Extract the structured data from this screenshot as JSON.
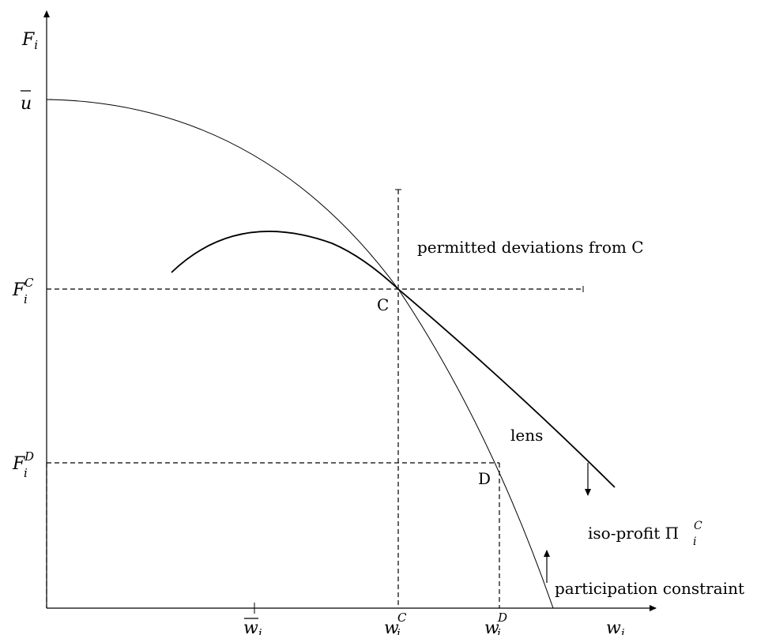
{
  "axes": {
    "y_label": {
      "main": "F",
      "sub": "i"
    },
    "x_label": {
      "main": "w",
      "sub": "i"
    }
  },
  "y_ticks": {
    "u_bar": "u",
    "fc": {
      "main": "F",
      "sub": "i",
      "sup": "C"
    },
    "fd": {
      "main": "F",
      "sub": "i",
      "sup": "D"
    }
  },
  "x_ticks": {
    "w_bar": {
      "main": "w",
      "sub": "i"
    },
    "wc": {
      "main": "w",
      "sub": "i",
      "sup": "C"
    },
    "wd": {
      "main": "w",
      "sub": "i",
      "sup": "D"
    }
  },
  "points": {
    "c": "C",
    "d": "D"
  },
  "labels": {
    "permitted": "permitted deviations from C",
    "lens": "lens",
    "iso_profit": {
      "prefix": "iso-profit Π",
      "sub": "i",
      "sup": "C"
    },
    "participation": "participation constraint"
  },
  "colors": {
    "ink": "#000000",
    "background": "#ffffff"
  }
}
